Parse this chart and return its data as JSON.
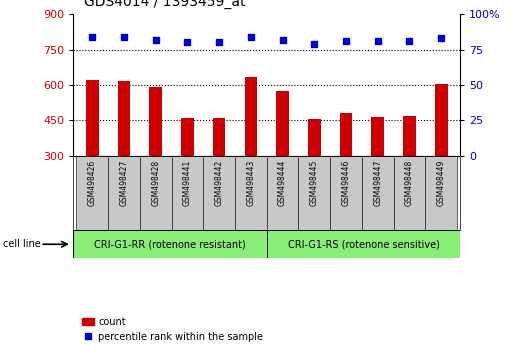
{
  "title": "GDS4014 / 1393459_at",
  "samples": [
    "GSM498426",
    "GSM498427",
    "GSM498428",
    "GSM498441",
    "GSM498442",
    "GSM498443",
    "GSM498444",
    "GSM498445",
    "GSM498446",
    "GSM498447",
    "GSM498448",
    "GSM498449"
  ],
  "counts": [
    620,
    615,
    590,
    462,
    460,
    635,
    575,
    455,
    480,
    465,
    468,
    605
  ],
  "percentiles": [
    84,
    84,
    82,
    80,
    80,
    84,
    82,
    79,
    81,
    81,
    81,
    83
  ],
  "bar_color": "#cc0000",
  "dot_color": "#0000cc",
  "ylim_left": [
    300,
    900
  ],
  "ylim_right": [
    0,
    100
  ],
  "yticks_left": [
    300,
    450,
    600,
    750,
    900
  ],
  "yticks_right": [
    0,
    25,
    50,
    75,
    100
  ],
  "group1_label": "CRI-G1-RR (rotenone resistant)",
  "group2_label": "CRI-G1-RS (rotenone sensitive)",
  "group1_count": 6,
  "group2_count": 6,
  "group_bg_color": "#88ee77",
  "tick_area_color": "#c8c8c8",
  "cell_line_label": "cell line",
  "legend_count_label": "count",
  "legend_percentile_label": "percentile rank within the sample",
  "bg_color": "#ffffff",
  "plot_bg_color": "#ffffff",
  "grid_color": "#000000",
  "title_fontsize": 10,
  "axis_fontsize": 8,
  "label_fontsize": 7
}
